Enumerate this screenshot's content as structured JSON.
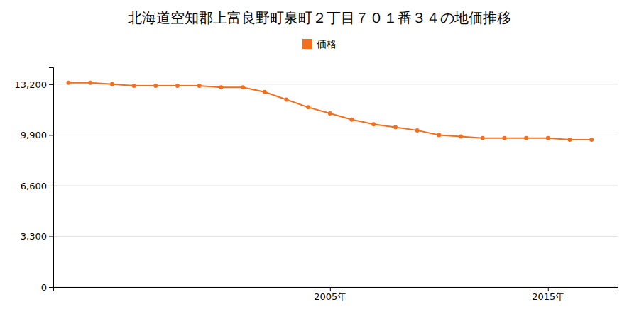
{
  "chart_data": {
    "type": "line",
    "title": "北海道空知郡上富良野町泉町２丁目７０１番３４の地価推移",
    "x": [
      1993,
      1994,
      1995,
      1996,
      1997,
      1998,
      1999,
      2000,
      2001,
      2002,
      2003,
      2004,
      2005,
      2006,
      2007,
      2008,
      2009,
      2010,
      2011,
      2012,
      2013,
      2014,
      2015,
      2016,
      2017
    ],
    "series": [
      {
        "name": "価格",
        "color": "#f07020",
        "marker": "circle",
        "values": [
          13300,
          13300,
          13200,
          13100,
          13100,
          13100,
          13100,
          13000,
          13000,
          12700,
          12200,
          11700,
          11300,
          10900,
          10600,
          10400,
          10200,
          9900,
          9800,
          9700,
          9700,
          9700,
          9700,
          9600,
          9600
        ]
      }
    ],
    "xlim": [
      1992.3,
      2018.2
    ],
    "xticks": [
      {
        "value": 2005,
        "label": "2005年"
      },
      {
        "value": 2015,
        "label": "2015年"
      }
    ],
    "ylim": [
      0,
      14300
    ],
    "yticks": [
      0,
      {
        "value": 3300,
        "label": "3,300"
      },
      {
        "value": 6600,
        "label": "6,600"
      },
      {
        "value": 9900,
        "label": "9,900"
      },
      {
        "value": 13200,
        "label": "13,200"
      }
    ],
    "grid": true,
    "legend": "top"
  }
}
